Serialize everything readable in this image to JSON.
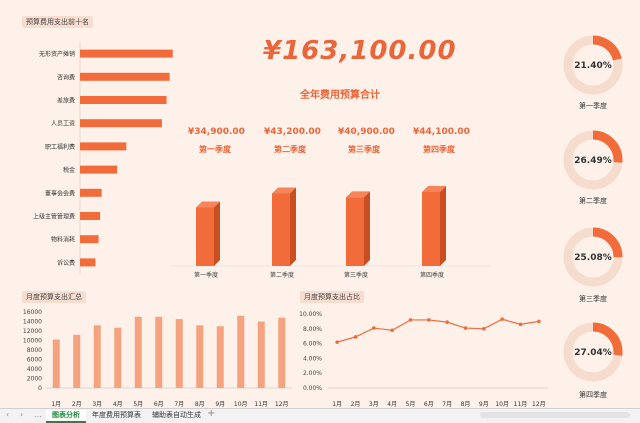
{
  "titles": {
    "top10": "预算费用支出前十名",
    "monthly_summary": "月度预算支出汇总",
    "monthly_ratio": "月度预算支出占比"
  },
  "total": {
    "value": "¥163,100.00",
    "label": "全年费用预算合计"
  },
  "quarters": [
    {
      "value": "¥34,900.00",
      "name": "第一季度"
    },
    {
      "value": "¥43,200.00",
      "name": "第二季度"
    },
    {
      "value": "¥40,900.00",
      "name": "第三季度"
    },
    {
      "value": "¥44,100.00",
      "name": "第四季度"
    }
  ],
  "donuts": [
    {
      "pct": "21.40%",
      "label": "第一季度",
      "value": 0.214
    },
    {
      "pct": "26.49%",
      "label": "第二季度",
      "value": 0.2649
    },
    {
      "pct": "25.08%",
      "label": "第三季度",
      "value": 0.2508
    },
    {
      "pct": "27.04%",
      "label": "第四季度",
      "value": 0.2704
    }
  ],
  "colors": {
    "accent": "#f26b3a",
    "accent_light": "#f5a27e",
    "ring_bg": "#f6dccd",
    "background": "#fdf1ea"
  },
  "tabs": [
    "图表分析",
    "年度费用预算表",
    "辅助表自动生成"
  ],
  "chart_data": [
    {
      "type": "bar",
      "orientation": "horizontal",
      "categories": [
        "无形资产摊销",
        "咨询费",
        "差旅费",
        "人员工资",
        "职工福利费",
        "税金",
        "董事会会费",
        "上级主管管理费",
        "物料消耗",
        "诉讼费"
      ],
      "values": [
        30000,
        29000,
        28000,
        26500,
        15000,
        12000,
        7000,
        6500,
        6000,
        5000
      ],
      "xlim": [
        0,
        33000
      ],
      "title": "",
      "grid": false
    },
    {
      "type": "bar",
      "categories": [
        "第一季度",
        "第二季度",
        "第三季度",
        "第四季度"
      ],
      "values": [
        34900,
        43200,
        40900,
        44100
      ],
      "ylim": [
        0,
        60000
      ],
      "style": "3d-column",
      "grid": false
    },
    {
      "type": "bar",
      "categories": [
        "1月",
        "2月",
        "3月",
        "4月",
        "5月",
        "6月",
        "7月",
        "8月",
        "9月",
        "10月",
        "11月",
        "12月"
      ],
      "values": [
        10200,
        11200,
        13200,
        12700,
        15000,
        15000,
        14500,
        13200,
        13000,
        15200,
        14000,
        14800
      ],
      "yticks": [
        "0",
        "2000",
        "4000",
        "6000",
        "8000",
        "10000",
        "12000",
        "14000",
        "16000"
      ],
      "ylim": [
        0,
        16000
      ],
      "grid": false
    },
    {
      "type": "line",
      "categories": [
        "1月",
        "2月",
        "3月",
        "4月",
        "5月",
        "6月",
        "7月",
        "8月",
        "9月",
        "10月",
        "11月",
        "12月"
      ],
      "values": [
        6.2,
        6.9,
        8.1,
        7.8,
        9.2,
        9.2,
        8.9,
        8.1,
        8.0,
        9.3,
        8.6,
        9.0
      ],
      "yticks": [
        "0.00%",
        "2.00%",
        "4.00%",
        "6.00%",
        "8.00%",
        "10.00%"
      ],
      "ylim": [
        0,
        10
      ],
      "grid": false
    }
  ]
}
